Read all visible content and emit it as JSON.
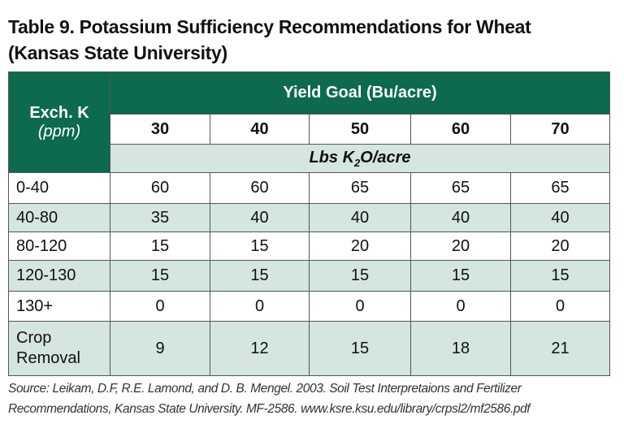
{
  "title": [
    "Table 9. Potassium Sufficiency Recommendations for Wheat",
    "(Kansas State University)"
  ],
  "table": {
    "row_header": {
      "line1": "Exch. K",
      "line2": "(ppm)"
    },
    "group_header": "Yield Goal (Bu/acre)",
    "columns": [
      30,
      40,
      50,
      60,
      70
    ],
    "unit": {
      "before": "Lbs K",
      "sub": "2",
      "after": "O/acre"
    },
    "rows": [
      [
        "0-40",
        60,
        60,
        65,
        65,
        65
      ],
      [
        "40-80",
        35,
        40,
        40,
        40,
        40
      ],
      [
        "80-120",
        15,
        15,
        20,
        20,
        20
      ],
      [
        "120-130",
        15,
        15,
        15,
        15,
        15
      ],
      [
        "130+",
        0,
        0,
        0,
        0,
        0
      ],
      [
        "Crop Removal",
        9,
        12,
        15,
        18,
        21
      ]
    ]
  },
  "source": [
    "Source: Leikam, D.F, R.E. Lamond, and D. B. Mengel. 2003. Soil Test Interpretaions and Fertilizer",
    "Recommendations, Kansas State University. MF-2586. www.ksre.ksu.edu/library/crpsl2/mf2586.pdf"
  ]
}
